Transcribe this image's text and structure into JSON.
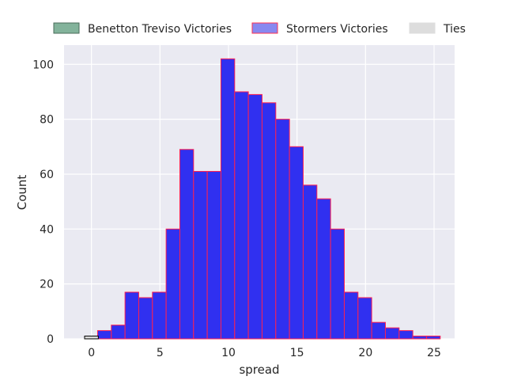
{
  "chart_data": {
    "type": "bar",
    "xlabel": "spread",
    "ylabel": "Count",
    "xlim": [
      -2,
      26.5
    ],
    "ylim": [
      0,
      107
    ],
    "xticks": [
      0,
      5,
      10,
      15,
      20,
      25
    ],
    "yticks": [
      0,
      20,
      40,
      60,
      80,
      100
    ],
    "grid": true,
    "legend_placement": "top",
    "bin_width": 1,
    "legend": [
      {
        "label": "Benetton Treviso Victories",
        "fill": "#83b39b",
        "edge": "#4a6b5a"
      },
      {
        "label": "Stormers Victories",
        "fill": "#8888f0",
        "edge": "#ff3050"
      },
      {
        "label": "Ties",
        "fill": "#dddddd",
        "edge": "#dddddd"
      }
    ],
    "series": [
      {
        "name": "Stormers Victories",
        "fill": "#3030f0",
        "edge": "#ff2050",
        "bins_start": [
          0.45,
          1.45,
          2.45,
          3.45,
          4.45,
          5.45,
          6.45,
          7.45,
          8.45,
          9.45,
          10.45,
          11.45,
          12.45,
          13.45,
          14.45,
          15.45,
          16.45,
          17.45,
          18.45,
          19.45,
          20.45,
          21.45,
          22.45,
          23.45,
          24.45
        ],
        "values": [
          3,
          5,
          17,
          15,
          17,
          40,
          69,
          61,
          61,
          102,
          90,
          89,
          86,
          80,
          70,
          56,
          51,
          40,
          17,
          15,
          6,
          4,
          3,
          1,
          1
        ]
      },
      {
        "name": "Ties",
        "fill": "#dddddd",
        "edge": "#000000",
        "bins_start": [
          -0.5
        ],
        "values": [
          1
        ]
      }
    ]
  }
}
